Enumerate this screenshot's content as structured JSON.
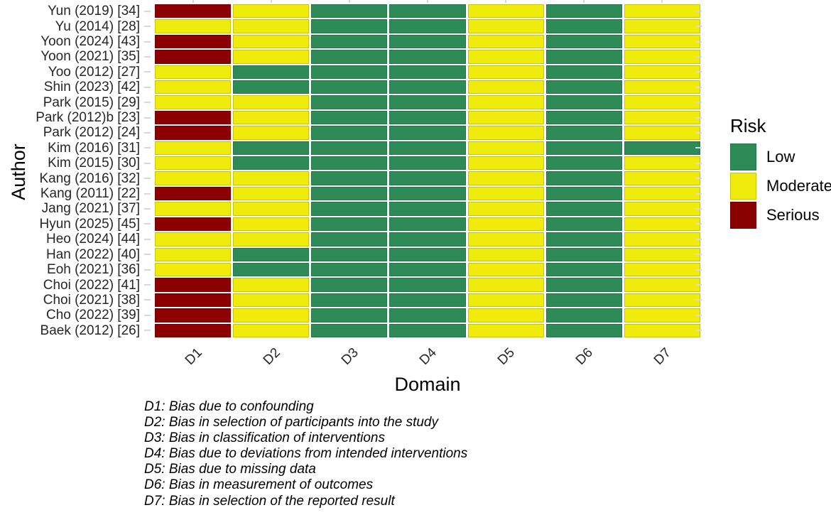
{
  "chart_data": {
    "type": "heatmap",
    "title": "",
    "xlabel": "Domain",
    "ylabel": "Author",
    "grid": "off",
    "legend_position": "right",
    "columns": [
      "D1",
      "D2",
      "D3",
      "D4",
      "D5",
      "D6",
      "D7"
    ],
    "rows": [
      "Yun (2019) [34]",
      "Yu (2014) [28]",
      "Yoon (2024) [43]",
      "Yoon (2021) [35]",
      "Yoo (2012) [27]",
      "Shin (2023) [42]",
      "Park (2015) [29]",
      "Park (2012)b [23]",
      "Park (2012) [24]",
      "Kim (2016) [31]",
      "Kim (2015) [30]",
      "Kang (2016) [32]",
      "Kang (2011) [22]",
      "Jang (2021) [37]",
      "Hyun (2025) [45]",
      "Heo (2024) [44]",
      "Han (2022) [40]",
      "Eoh (2021) [36]",
      "Choi (2022) [41]",
      "Choi (2021) [38]",
      "Cho (2022) [39]",
      "Baek (2012) [26]"
    ],
    "values": [
      [
        "Serious",
        "Moderate",
        "Low",
        "Low",
        "Moderate",
        "Low",
        "Moderate"
      ],
      [
        "Moderate",
        "Moderate",
        "Low",
        "Low",
        "Moderate",
        "Low",
        "Moderate"
      ],
      [
        "Serious",
        "Moderate",
        "Low",
        "Low",
        "Moderate",
        "Low",
        "Moderate"
      ],
      [
        "Serious",
        "Moderate",
        "Low",
        "Low",
        "Moderate",
        "Low",
        "Moderate"
      ],
      [
        "Moderate",
        "Low",
        "Low",
        "Low",
        "Moderate",
        "Low",
        "Moderate"
      ],
      [
        "Moderate",
        "Low",
        "Low",
        "Low",
        "Moderate",
        "Low",
        "Moderate"
      ],
      [
        "Moderate",
        "Moderate",
        "Low",
        "Low",
        "Moderate",
        "Low",
        "Moderate"
      ],
      [
        "Serious",
        "Moderate",
        "Low",
        "Low",
        "Moderate",
        "Low",
        "Moderate"
      ],
      [
        "Serious",
        "Moderate",
        "Low",
        "Low",
        "Moderate",
        "Low",
        "Moderate"
      ],
      [
        "Moderate",
        "Low",
        "Low",
        "Low",
        "Moderate",
        "Low",
        "Low"
      ],
      [
        "Moderate",
        "Low",
        "Low",
        "Low",
        "Moderate",
        "Low",
        "Moderate"
      ],
      [
        "Moderate",
        "Moderate",
        "Low",
        "Low",
        "Moderate",
        "Low",
        "Moderate"
      ],
      [
        "Serious",
        "Moderate",
        "Low",
        "Low",
        "Moderate",
        "Low",
        "Moderate"
      ],
      [
        "Moderate",
        "Moderate",
        "Low",
        "Low",
        "Moderate",
        "Low",
        "Moderate"
      ],
      [
        "Serious",
        "Moderate",
        "Low",
        "Low",
        "Moderate",
        "Low",
        "Moderate"
      ],
      [
        "Moderate",
        "Moderate",
        "Low",
        "Low",
        "Moderate",
        "Low",
        "Moderate"
      ],
      [
        "Moderate",
        "Low",
        "Low",
        "Low",
        "Moderate",
        "Low",
        "Moderate"
      ],
      [
        "Moderate",
        "Low",
        "Low",
        "Low",
        "Moderate",
        "Low",
        "Moderate"
      ],
      [
        "Serious",
        "Moderate",
        "Low",
        "Low",
        "Moderate",
        "Low",
        "Moderate"
      ],
      [
        "Serious",
        "Moderate",
        "Low",
        "Low",
        "Moderate",
        "Low",
        "Moderate"
      ],
      [
        "Serious",
        "Moderate",
        "Low",
        "Low",
        "Moderate",
        "Low",
        "Moderate"
      ],
      [
        "Serious",
        "Moderate",
        "Low",
        "Low",
        "Moderate",
        "Low",
        "Moderate"
      ]
    ],
    "legend": {
      "title": "Risk",
      "entries": [
        {
          "label": "Low",
          "color": "#2E8B57"
        },
        {
          "label": "Moderate",
          "color": "#EFEB0D"
        },
        {
          "label": "Serious",
          "color": "#8B0000"
        }
      ]
    },
    "footnotes": [
      "D1: Bias due to confounding",
      "D2: Bias in selection of participants into the study",
      "D3: Bias in classification of interventions",
      "D4: Bias due to deviations from intended interventions",
      "D5: Bias due to missing data",
      "D6: Bias in measurement of outcomes",
      "D7: Bias in selection of the reported result"
    ]
  },
  "colors": {
    "Low": "#2E8B57",
    "Moderate": "#EFEB0D",
    "Serious": "#8B0000",
    "tick": "#d8d8d8",
    "axis_text": "#262626",
    "background": "#ffffff"
  }
}
